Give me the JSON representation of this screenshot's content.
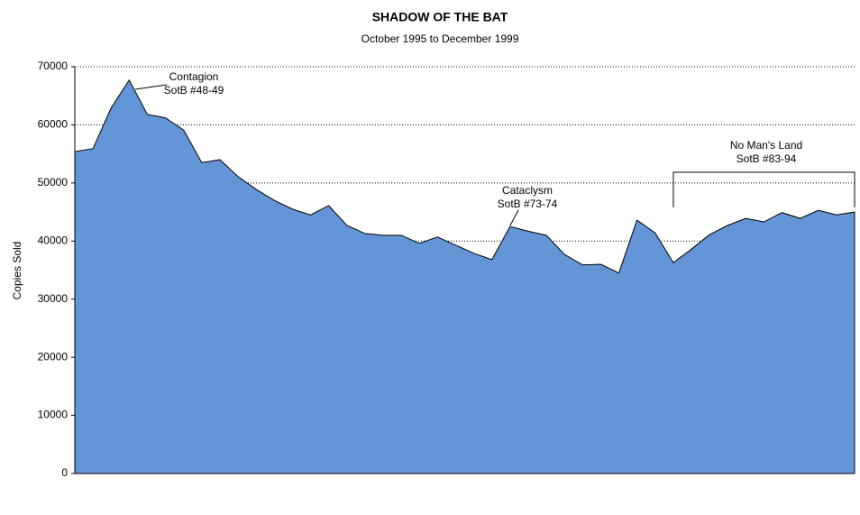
{
  "chart_data": {
    "type": "area",
    "title": "SHADOW OF THE BAT",
    "subtitle": "October 1995 to December 1999",
    "y_label": "Copies Sold",
    "color": "#6495d6",
    "grid": true,
    "categories": [
      null,
      null,
      null,
      null,
      null,
      null,
      null,
      null,
      null,
      null,
      null,
      null,
      null,
      null,
      null,
      null,
      null,
      null,
      null,
      null,
      null,
      null,
      null,
      null,
      null,
      null,
      null,
      null,
      null,
      null,
      null,
      null,
      null,
      null,
      null,
      null,
      null,
      null,
      null,
      null,
      null,
      null,
      null,
      null
    ],
    "values": [
      55400,
      55900,
      62900,
      67700,
      61800,
      61200,
      59100,
      53500,
      54000,
      51100,
      48900,
      47000,
      45500,
      44500,
      46100,
      42700,
      41300,
      41000,
      41000,
      39600,
      40700,
      39300,
      37900,
      36800,
      42500,
      41700,
      41000,
      37700,
      35900,
      36000,
      34500,
      43600,
      41400,
      36300,
      38600,
      41100,
      42700,
      43900,
      43300,
      44900,
      43900,
      45300,
      44500,
      45000
    ],
    "ylim": [
      0,
      70000
    ],
    "yticks": [
      0,
      10000,
      20000,
      30000,
      40000,
      50000,
      60000,
      70000
    ],
    "annotations": [
      {
        "label": "Contagion",
        "detail": "SotB #48-49"
      },
      {
        "label": "Cataclysm",
        "detail": "SotB #73-74"
      },
      {
        "label": "No Man's Land",
        "detail": "SotB #83-94"
      }
    ]
  }
}
